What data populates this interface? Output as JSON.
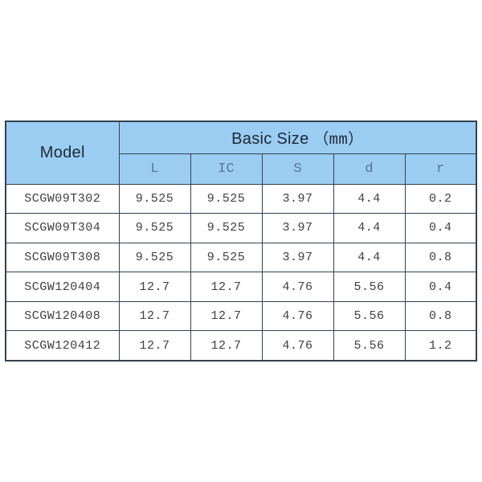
{
  "chart_data": {
    "type": "table",
    "title": "Basic Size （mm）",
    "header": {
      "model": "Model",
      "basic_size": "Basic Size",
      "unit": "（mm）",
      "columns": [
        "L",
        "IC",
        "S",
        "d",
        "r"
      ]
    },
    "rows": [
      {
        "model": "SCGW09T302",
        "values": [
          "9.525",
          "9.525",
          "3.97",
          "4.4",
          "0.2"
        ]
      },
      {
        "model": "SCGW09T304",
        "values": [
          "9.525",
          "9.525",
          "3.97",
          "4.4",
          "0.4"
        ]
      },
      {
        "model": "SCGW09T308",
        "values": [
          "9.525",
          "9.525",
          "3.97",
          "4.4",
          "0.8"
        ]
      },
      {
        "model": "SCGW120404",
        "values": [
          "12.7",
          "12.7",
          "4.76",
          "5.56",
          "0.4"
        ]
      },
      {
        "model": "SCGW120408",
        "values": [
          "12.7",
          "12.7",
          "4.76",
          "5.56",
          "0.8"
        ]
      },
      {
        "model": "SCGW120412",
        "values": [
          "12.7",
          "12.7",
          "4.76",
          "5.56",
          "1.2"
        ]
      }
    ]
  },
  "colors": {
    "header_fill": "#9bcdf3",
    "border": "#33424f",
    "header_text": "#1d2834",
    "subheader_text": "#54749b",
    "body_text": "#3f3f3f",
    "page_background": "#ffffff"
  }
}
